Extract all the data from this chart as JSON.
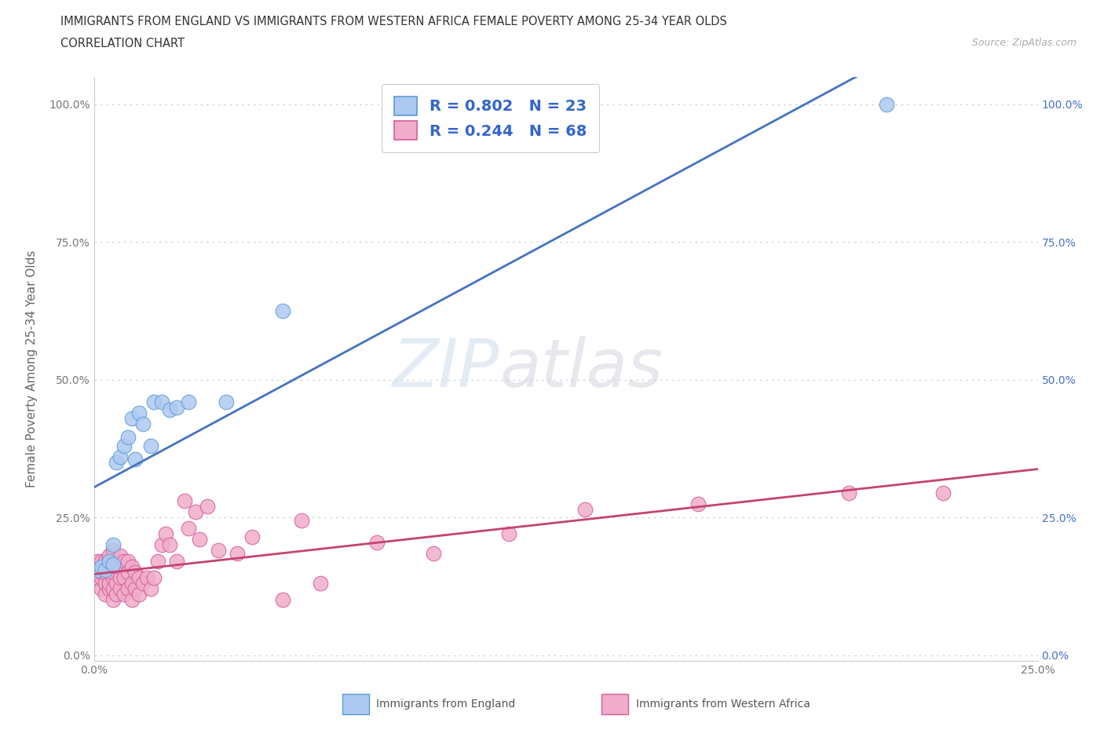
{
  "title_line1": "IMMIGRANTS FROM ENGLAND VS IMMIGRANTS FROM WESTERN AFRICA FEMALE POVERTY AMONG 25-34 YEAR OLDS",
  "title_line2": "CORRELATION CHART",
  "source_text": "Source: ZipAtlas.com",
  "ylabel": "Female Poverty Among 25-34 Year Olds",
  "xlabel_england": "Immigrants from England",
  "xlabel_africa": "Immigrants from Western Africa",
  "xlim": [
    0.0,
    0.25
  ],
  "ylim": [
    -0.01,
    1.05
  ],
  "ytick_labels": [
    "0.0%",
    "25.0%",
    "50.0%",
    "75.0%",
    "100.0%"
  ],
  "ytick_values": [
    0.0,
    0.25,
    0.5,
    0.75,
    1.0
  ],
  "xtick_labels": [
    "0.0%",
    "25.0%"
  ],
  "xtick_values": [
    0.0,
    0.25
  ],
  "england_fill_color": "#adc9f0",
  "africa_fill_color": "#f0adc9",
  "england_edge_color": "#5b9bd5",
  "africa_edge_color": "#d55b9b",
  "england_line_color": "#4472c4",
  "africa_line_color": "#c44472",
  "right_tick_color": "#4472c4",
  "R_england": "0.802",
  "N_england": "23",
  "R_africa": "0.244",
  "N_africa": "68",
  "legend_label_england": "Immigrants from England",
  "legend_label_africa": "Immigrants from Western Africa",
  "watermark_zip": "ZIP",
  "watermark_atlas": "atlas",
  "england_x": [
    0.001,
    0.002,
    0.003,
    0.004,
    0.005,
    0.005,
    0.006,
    0.007,
    0.008,
    0.009,
    0.01,
    0.011,
    0.012,
    0.013,
    0.015,
    0.016,
    0.018,
    0.02,
    0.022,
    0.025,
    0.035,
    0.05,
    0.21
  ],
  "england_y": [
    0.155,
    0.16,
    0.155,
    0.17,
    0.165,
    0.2,
    0.35,
    0.36,
    0.38,
    0.395,
    0.43,
    0.355,
    0.44,
    0.42,
    0.38,
    0.46,
    0.46,
    0.445,
    0.45,
    0.46,
    0.46,
    0.625,
    1.0
  ],
  "africa_x": [
    0.001,
    0.001,
    0.001,
    0.002,
    0.002,
    0.002,
    0.002,
    0.003,
    0.003,
    0.003,
    0.003,
    0.004,
    0.004,
    0.004,
    0.004,
    0.005,
    0.005,
    0.005,
    0.005,
    0.005,
    0.005,
    0.006,
    0.006,
    0.006,
    0.007,
    0.007,
    0.007,
    0.007,
    0.008,
    0.008,
    0.008,
    0.009,
    0.009,
    0.009,
    0.01,
    0.01,
    0.01,
    0.011,
    0.011,
    0.012,
    0.012,
    0.013,
    0.014,
    0.015,
    0.016,
    0.017,
    0.018,
    0.019,
    0.02,
    0.022,
    0.024,
    0.025,
    0.027,
    0.028,
    0.03,
    0.033,
    0.038,
    0.042,
    0.05,
    0.055,
    0.06,
    0.075,
    0.09,
    0.11,
    0.13,
    0.16,
    0.2,
    0.225
  ],
  "africa_y": [
    0.14,
    0.15,
    0.17,
    0.12,
    0.14,
    0.15,
    0.17,
    0.11,
    0.13,
    0.15,
    0.17,
    0.12,
    0.13,
    0.15,
    0.18,
    0.1,
    0.12,
    0.14,
    0.15,
    0.17,
    0.19,
    0.11,
    0.13,
    0.16,
    0.12,
    0.14,
    0.16,
    0.18,
    0.11,
    0.14,
    0.17,
    0.12,
    0.15,
    0.17,
    0.1,
    0.13,
    0.16,
    0.12,
    0.15,
    0.11,
    0.14,
    0.13,
    0.14,
    0.12,
    0.14,
    0.17,
    0.2,
    0.22,
    0.2,
    0.17,
    0.28,
    0.23,
    0.26,
    0.21,
    0.27,
    0.19,
    0.185,
    0.215,
    0.1,
    0.245,
    0.13,
    0.205,
    0.185,
    0.22,
    0.265,
    0.275,
    0.295,
    0.295
  ]
}
